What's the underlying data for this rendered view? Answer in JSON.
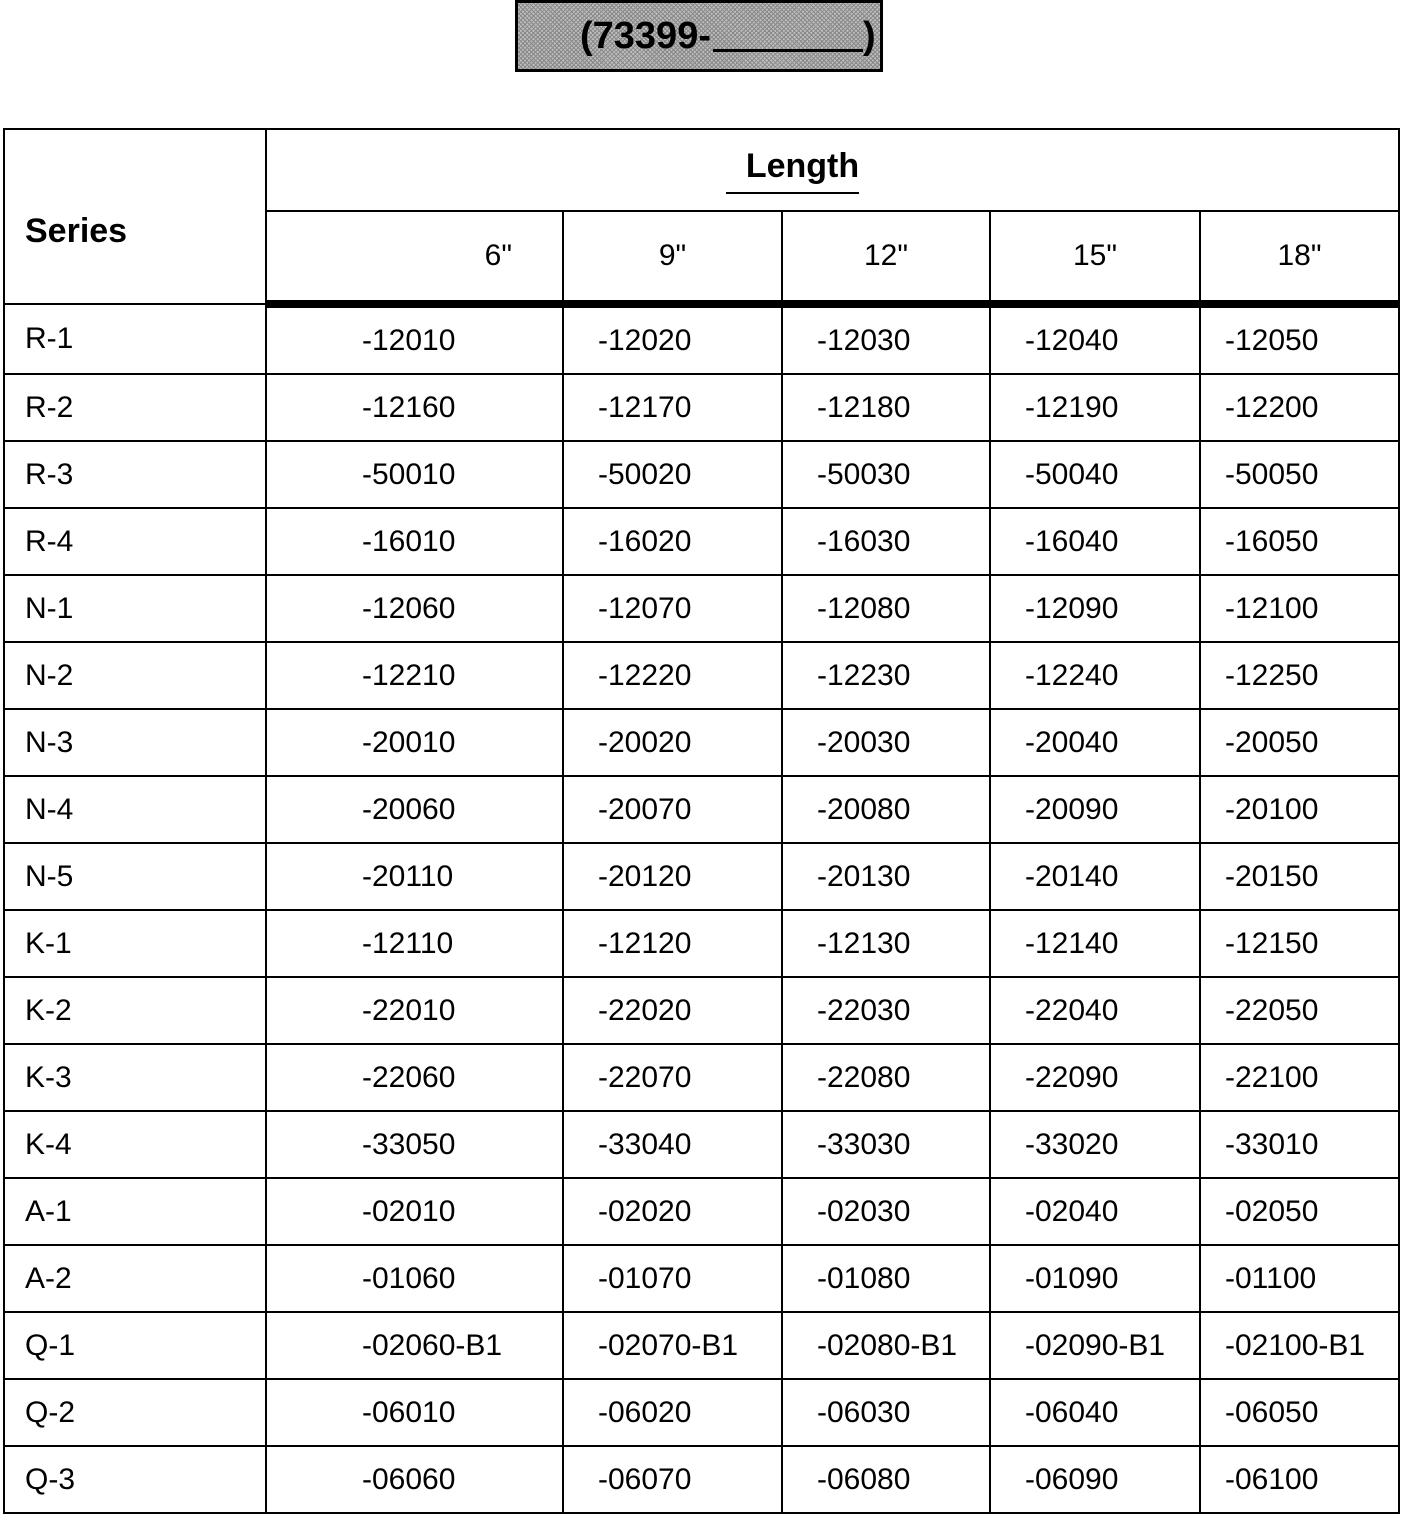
{
  "part_box": {
    "prefix": "(73399-",
    "suffix": ")"
  },
  "table": {
    "series_header": "Series",
    "length_header": "Length",
    "sizes": [
      "6\"",
      "9\"",
      "12\"",
      "15\"",
      "18\""
    ],
    "rows": [
      {
        "series": "R-1",
        "values": [
          "-12010",
          "-12020",
          "-12030",
          "-12040",
          "-12050"
        ]
      },
      {
        "series": "R-2",
        "values": [
          "-12160",
          "-12170",
          "-12180",
          "-12190",
          "-12200"
        ]
      },
      {
        "series": "R-3",
        "values": [
          "-50010",
          "-50020",
          "-50030",
          "-50040",
          "-50050"
        ]
      },
      {
        "series": "R-4",
        "values": [
          "-16010",
          "-16020",
          "-16030",
          "-16040",
          "-16050"
        ]
      },
      {
        "series": "N-1",
        "values": [
          "-12060",
          "-12070",
          "-12080",
          "-12090",
          "-12100"
        ]
      },
      {
        "series": "N-2",
        "values": [
          "-12210",
          "-12220",
          "-12230",
          "-12240",
          "-12250"
        ]
      },
      {
        "series": "N-3",
        "values": [
          "-20010",
          "-20020",
          "-20030",
          "-20040",
          "-20050"
        ]
      },
      {
        "series": "N-4",
        "values": [
          "-20060",
          "-20070",
          "-20080",
          "-20090",
          "-20100"
        ]
      },
      {
        "series": "N-5",
        "values": [
          "-20110",
          "-20120",
          "-20130",
          "-20140",
          "-20150"
        ]
      },
      {
        "series": "K-1",
        "values": [
          "-12110",
          "-12120",
          "-12130",
          "-12140",
          "-12150"
        ]
      },
      {
        "series": "K-2",
        "values": [
          "-22010",
          "-22020",
          "-22030",
          "-22040",
          "-22050"
        ]
      },
      {
        "series": "K-3",
        "values": [
          "-22060",
          "-22070",
          "-22080",
          "-22090",
          "-22100"
        ]
      },
      {
        "series": "K-4",
        "values": [
          "-33050",
          "-33040",
          "-33030",
          "-33020",
          "-33010"
        ]
      },
      {
        "series": "A-1",
        "values": [
          "-02010",
          "-02020",
          "-02030",
          "-02040",
          "-02050"
        ]
      },
      {
        "series": "A-2",
        "values": [
          "-01060",
          "-01070",
          "-01080",
          "-01090",
          "-01100"
        ]
      },
      {
        "series": "Q-1",
        "values": [
          "-02060-B1",
          "-02070-B1",
          "-02080-B1",
          "-02090-B1",
          "-02100-B1"
        ]
      },
      {
        "series": "Q-2",
        "values": [
          "-06010",
          "-06020",
          "-06030",
          "-06040",
          "-06050"
        ]
      },
      {
        "series": "Q-3",
        "values": [
          "-06060",
          "-06070",
          "-06080",
          "-06090",
          "-06100"
        ]
      }
    ]
  }
}
